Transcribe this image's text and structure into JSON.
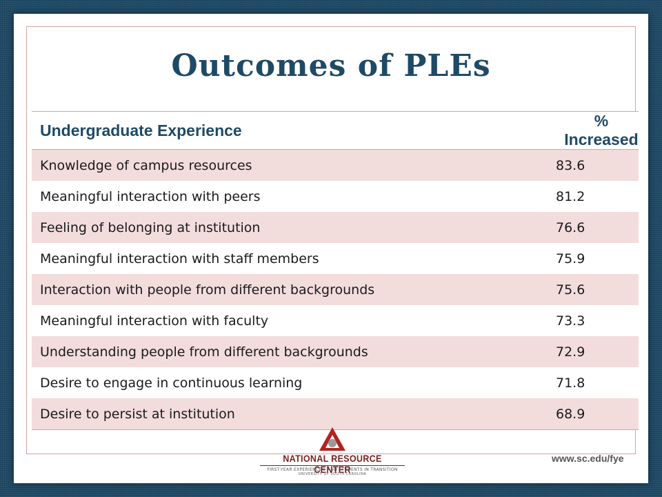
{
  "slide": {
    "title": "Outcomes of PLEs"
  },
  "table": {
    "header": {
      "experience": "Undergraduate Experience",
      "percent": "% Increased"
    },
    "rows": [
      {
        "experience": "Knowledge of campus resources",
        "percent": "83.6"
      },
      {
        "experience": "Meaningful interaction with peers",
        "percent": "81.2"
      },
      {
        "experience": "Feeling of belonging at institution",
        "percent": "76.6"
      },
      {
        "experience": "Meaningful interaction with staff members",
        "percent": "75.9"
      },
      {
        "experience": "Interaction with people from different backgrounds",
        "percent": "75.6"
      },
      {
        "experience": "Meaningful interaction with faculty",
        "percent": "73.3"
      },
      {
        "experience": "Understanding people from different backgrounds",
        "percent": "72.9"
      },
      {
        "experience": "Desire to engage in continuous learning",
        "percent": "71.8"
      },
      {
        "experience": "Desire to persist at institution",
        "percent": "68.9"
      }
    ]
  },
  "footer": {
    "logo_name": "NATIONAL RESOURCE CENTER",
    "logo_sub": "FIRST-YEAR EXPERIENCE® AND STUDENTS IN TRANSITION",
    "logo_sub2": "UNIVERSITY OF SOUTH CAROLINA",
    "website": "www.sc.edu/fye"
  },
  "colors": {
    "title": "#1f4a66",
    "row_shade": "#f2dcdc",
    "border": "#d9a0a0",
    "logo_red": "#b22222"
  }
}
